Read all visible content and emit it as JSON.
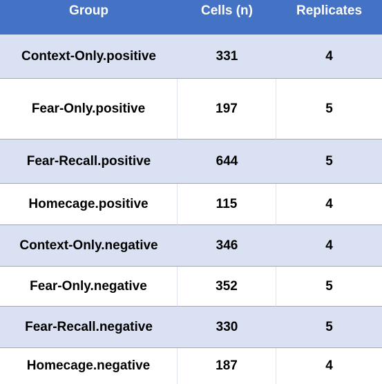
{
  "table": {
    "headers": [
      "Group",
      "Cells (n)",
      "Replicates"
    ],
    "rows": [
      {
        "group": "Context-Only.positive",
        "cells": "331",
        "replicates": "4"
      },
      {
        "group": "Fear-Only.positive",
        "cells": "197",
        "replicates": "5"
      },
      {
        "group": "Fear-Recall.positive",
        "cells": "644",
        "replicates": "5"
      },
      {
        "group": "Homecage.positive",
        "cells": "115",
        "replicates": "4"
      },
      {
        "group": "Context-Only.negative",
        "cells": "346",
        "replicates": "4"
      },
      {
        "group": "Fear-Only.negative",
        "cells": "352",
        "replicates": "5"
      },
      {
        "group": "Fear-Recall.negative",
        "cells": "330",
        "replicates": "5"
      },
      {
        "group": "Homecage.negative",
        "cells": "187",
        "replicates": "4"
      }
    ]
  },
  "colors": {
    "header_bg": "#4472c4",
    "band_bg": "#d9e1f2",
    "header_text": "#ffffff",
    "row_separator": "#8ea9db"
  }
}
